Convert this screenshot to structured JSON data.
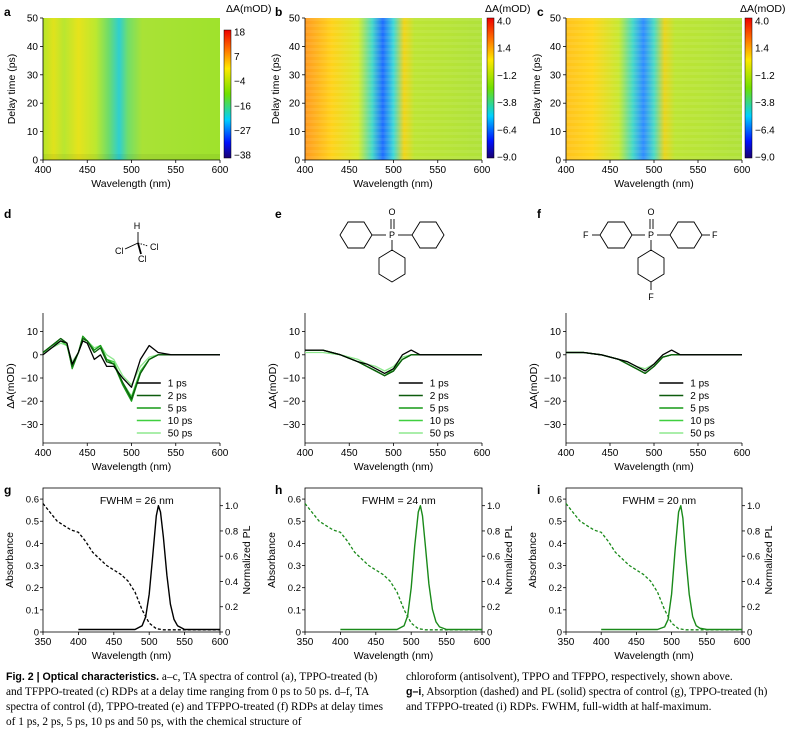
{
  "panel_letters": [
    "a",
    "b",
    "c",
    "d",
    "e",
    "f",
    "g",
    "h",
    "i"
  ],
  "colors": {
    "control": "#000000",
    "tppo": "#1a8a1a",
    "tfppo": "#1a8a1a",
    "d_series": [
      "#000000",
      "#0d5c0d",
      "#169a16",
      "#3fcf3f",
      "#8ee88e"
    ]
  },
  "common": {
    "wavelength_label": "Wavelength (nm)",
    "delay_label": "Delay time (ps)",
    "delta_a_label": "ΔA(mOD)",
    "absorbance_label": "Absorbance",
    "pl_label": "Normalized PL"
  },
  "chart_data": [
    {
      "id": "a",
      "type": "heatmap",
      "xlabel": "Wavelength (nm)",
      "ylabel": "Delay time (ps)",
      "xlim": [
        400,
        600
      ],
      "ylim": [
        0,
        50
      ],
      "xticks": [
        400,
        450,
        500,
        550,
        600
      ],
      "yticks": [
        0,
        10,
        20,
        30,
        40,
        50
      ],
      "colorbar": {
        "label": "ΔA(mOD)",
        "ticks": [
          "18",
          "7",
          "−4",
          "−16",
          "−27",
          "−38"
        ],
        "range": [
          -38,
          18
        ]
      }
    },
    {
      "id": "b",
      "type": "heatmap",
      "xlabel": "Wavelength (nm)",
      "ylabel": "Delay time (ps)",
      "xlim": [
        400,
        600
      ],
      "ylim": [
        0,
        50
      ],
      "xticks": [
        400,
        450,
        500,
        550,
        600
      ],
      "yticks": [
        0,
        10,
        20,
        30,
        40,
        50
      ],
      "colorbar": {
        "label": "ΔA(mOD)",
        "ticks": [
          "4.0",
          "1.4",
          "−1.2",
          "−3.8",
          "−6.4",
          "−9.0"
        ],
        "range": [
          -9,
          4
        ]
      }
    },
    {
      "id": "c",
      "type": "heatmap",
      "xlabel": "Wavelength (nm)",
      "ylabel": "Delay time (ps)",
      "xlim": [
        400,
        600
      ],
      "ylim": [
        0,
        50
      ],
      "xticks": [
        400,
        450,
        500,
        550,
        600
      ],
      "yticks": [
        0,
        10,
        20,
        30,
        40,
        50
      ],
      "colorbar": {
        "label": "ΔA(mOD)",
        "ticks": [
          "4.0",
          "1.4",
          "−1.2",
          "−3.8",
          "−6.4",
          "−9.0"
        ],
        "range": [
          -9,
          4
        ]
      }
    },
    {
      "id": "d",
      "type": "line",
      "xlabel": "Wavelength (nm)",
      "ylabel": "ΔA(mOD)",
      "xlim": [
        400,
        600
      ],
      "ylim": [
        -38,
        18
      ],
      "xticks": [
        400,
        450,
        500,
        550,
        600
      ],
      "yticks": [
        10,
        0,
        -10,
        -20,
        -30
      ],
      "series": [
        {
          "name": "1 ps",
          "x": [
            400,
            410,
            420,
            427,
            433,
            440,
            445,
            450,
            458,
            465,
            472,
            480,
            490,
            500,
            510,
            520,
            530,
            545,
            560,
            600
          ],
          "y": [
            0,
            3,
            6,
            5,
            -4,
            1,
            6,
            5,
            -2,
            0,
            -5,
            -5,
            -10,
            -14,
            -2,
            4,
            1,
            0,
            0,
            0
          ]
        },
        {
          "name": "2 ps",
          "x": [
            400,
            410,
            420,
            427,
            433,
            440,
            445,
            450,
            458,
            465,
            472,
            480,
            490,
            500,
            510,
            520,
            530,
            545,
            560,
            600
          ],
          "y": [
            1,
            4,
            7,
            5,
            -5,
            1,
            7,
            6,
            1,
            3,
            -3,
            -4,
            -12,
            -19,
            -8,
            -2,
            0,
            0,
            0,
            0
          ]
        },
        {
          "name": "5 ps",
          "x": [
            400,
            410,
            420,
            427,
            433,
            440,
            445,
            450,
            458,
            465,
            472,
            480,
            490,
            500,
            510,
            520,
            530,
            545,
            560,
            600
          ],
          "y": [
            1,
            4,
            7,
            5,
            -6,
            1,
            8,
            6,
            2,
            4,
            -2,
            -4,
            -13,
            -20,
            -8,
            -2,
            0,
            0,
            0,
            0
          ]
        },
        {
          "name": "10 ps",
          "x": [
            400,
            410,
            420,
            427,
            433,
            440,
            445,
            450,
            458,
            465,
            472,
            480,
            490,
            500,
            510,
            520,
            530,
            545,
            560,
            600
          ],
          "y": [
            1,
            4,
            6,
            4,
            -5,
            1,
            7,
            6,
            2,
            4,
            -2,
            -3,
            -12,
            -18,
            -7,
            -2,
            0,
            0,
            0,
            0
          ]
        },
        {
          "name": "50 ps",
          "x": [
            400,
            410,
            420,
            427,
            433,
            440,
            445,
            450,
            458,
            465,
            472,
            480,
            490,
            500,
            510,
            520,
            530,
            545,
            560,
            600
          ],
          "y": [
            1,
            3,
            5,
            4,
            -3,
            1,
            6,
            6,
            3,
            4,
            0,
            -2,
            -9,
            -13,
            -5,
            -1,
            0,
            0,
            0,
            0
          ]
        }
      ]
    },
    {
      "id": "e",
      "type": "line",
      "xlabel": "Wavelength (nm)",
      "ylabel": "ΔA(mOD)",
      "xlim": [
        400,
        600
      ],
      "ylim": [
        -38,
        18
      ],
      "xticks": [
        400,
        450,
        500,
        550,
        600
      ],
      "yticks": [
        10,
        0,
        -10,
        -20,
        -30
      ],
      "series": [
        {
          "name": "1 ps",
          "x": [
            400,
            420,
            440,
            460,
            470,
            480,
            490,
            500,
            510,
            520,
            530,
            545,
            560,
            600
          ],
          "y": [
            2,
            2,
            0,
            -3,
            -4,
            -6,
            -8,
            -6,
            0,
            2,
            0,
            0,
            0,
            0
          ]
        },
        {
          "name": "2 ps",
          "x": [
            400,
            420,
            440,
            460,
            470,
            480,
            490,
            500,
            510,
            520,
            530,
            545,
            560,
            600
          ],
          "y": [
            2,
            2,
            0,
            -3,
            -5,
            -7,
            -9,
            -7,
            -2,
            0,
            0,
            0,
            0,
            0
          ]
        },
        {
          "name": "5 ps",
          "x": [
            400,
            420,
            440,
            460,
            470,
            480,
            490,
            500,
            510,
            520,
            530,
            545,
            560,
            600
          ],
          "y": [
            2,
            2,
            0,
            -3,
            -5,
            -7,
            -9,
            -7,
            -2,
            0,
            0,
            0,
            0,
            0
          ]
        },
        {
          "name": "10 ps",
          "x": [
            400,
            420,
            440,
            460,
            470,
            480,
            490,
            500,
            510,
            520,
            530,
            545,
            560,
            600
          ],
          "y": [
            2,
            2,
            0,
            -3,
            -5,
            -7,
            -9,
            -6,
            -2,
            0,
            0,
            0,
            0,
            0
          ]
        },
        {
          "name": "50 ps",
          "x": [
            400,
            420,
            440,
            460,
            470,
            480,
            490,
            500,
            510,
            520,
            530,
            545,
            560,
            600
          ],
          "y": [
            1,
            1,
            0,
            -2,
            -4,
            -5,
            -7,
            -5,
            -1,
            0,
            0,
            0,
            0,
            0
          ]
        }
      ]
    },
    {
      "id": "f",
      "type": "line",
      "xlabel": "Wavelength (nm)",
      "ylabel": "ΔA(mOD)",
      "xlim": [
        400,
        600
      ],
      "ylim": [
        -38,
        18
      ],
      "xticks": [
        400,
        450,
        500,
        550,
        600
      ],
      "yticks": [
        10,
        0,
        -10,
        -20,
        -30
      ],
      "series": [
        {
          "name": "1 ps",
          "x": [
            400,
            420,
            440,
            460,
            470,
            480,
            490,
            500,
            510,
            520,
            530,
            545,
            560,
            600
          ],
          "y": [
            1,
            1,
            0,
            -2,
            -3,
            -5,
            -7,
            -4,
            0,
            2,
            0,
            0,
            0,
            0
          ]
        },
        {
          "name": "2 ps",
          "x": [
            400,
            420,
            440,
            460,
            470,
            480,
            490,
            500,
            510,
            520,
            530,
            545,
            560,
            600
          ],
          "y": [
            1,
            1,
            0,
            -2,
            -4,
            -6,
            -8,
            -5,
            -1,
            0,
            0,
            0,
            0,
            0
          ]
        },
        {
          "name": "5 ps",
          "x": [
            400,
            420,
            440,
            460,
            470,
            480,
            490,
            500,
            510,
            520,
            530,
            545,
            560,
            600
          ],
          "y": [
            1,
            1,
            0,
            -2,
            -4,
            -6,
            -8,
            -5,
            -1,
            0,
            0,
            0,
            0,
            0
          ]
        },
        {
          "name": "10 ps",
          "x": [
            400,
            420,
            440,
            460,
            470,
            480,
            490,
            500,
            510,
            520,
            530,
            545,
            560,
            600
          ],
          "y": [
            1,
            1,
            0,
            -2,
            -4,
            -6,
            -8,
            -5,
            -1,
            0,
            0,
            0,
            0,
            0
          ]
        },
        {
          "name": "50 ps",
          "x": [
            400,
            420,
            440,
            460,
            470,
            480,
            490,
            500,
            510,
            520,
            530,
            545,
            560,
            600
          ],
          "y": [
            1,
            1,
            0,
            -2,
            -3,
            -5,
            -6,
            -4,
            -1,
            0,
            0,
            0,
            0,
            0
          ]
        }
      ]
    },
    {
      "id": "g",
      "type": "line",
      "xlabel": "Wavelength (nm)",
      "ylabel": "Absorbance",
      "y2label": "Normalized PL",
      "xlim": [
        350,
        600
      ],
      "ylim": [
        0,
        0.65
      ],
      "y2lim": [
        0,
        1.14
      ],
      "xticks": [
        350,
        400,
        450,
        500,
        550,
        600
      ],
      "yticks": [
        0,
        0.1,
        0.2,
        0.3,
        0.4,
        0.5,
        0.6
      ],
      "y2ticks": [
        0,
        0.2,
        0.4,
        0.6,
        0.8,
        1.0
      ],
      "annotation": "FWHM = 26 nm",
      "absorbance": {
        "x": [
          350,
          360,
          370,
          380,
          390,
          400,
          410,
          420,
          430,
          440,
          450,
          460,
          470,
          480,
          490,
          500,
          510,
          520,
          530,
          600
        ],
        "y": [
          0.58,
          0.54,
          0.5,
          0.48,
          0.46,
          0.45,
          0.41,
          0.36,
          0.33,
          0.3,
          0.28,
          0.26,
          0.23,
          0.18,
          0.1,
          0.04,
          0.015,
          0.01,
          0.01,
          0.01
        ]
      },
      "pl": {
        "x": [
          400,
          480,
          490,
          495,
          500,
          505,
          510,
          513,
          516,
          520,
          525,
          530,
          535,
          540,
          550,
          600
        ],
        "y": [
          0.02,
          0.02,
          0.05,
          0.12,
          0.3,
          0.6,
          0.92,
          1.0,
          0.95,
          0.75,
          0.45,
          0.22,
          0.1,
          0.05,
          0.02,
          0.02
        ]
      }
    },
    {
      "id": "h",
      "type": "line",
      "xlabel": "Wavelength (nm)",
      "ylabel": "Absorbance",
      "y2label": "Normalized PL",
      "xlim": [
        350,
        600
      ],
      "ylim": [
        0,
        0.65
      ],
      "y2lim": [
        0,
        1.14
      ],
      "xticks": [
        350,
        400,
        450,
        500,
        550,
        600
      ],
      "yticks": [
        0,
        0.1,
        0.2,
        0.3,
        0.4,
        0.5,
        0.6
      ],
      "y2ticks": [
        0,
        0.2,
        0.4,
        0.6,
        0.8,
        1.0
      ],
      "annotation": "FWHM = 24 nm",
      "absorbance": {
        "x": [
          350,
          360,
          370,
          380,
          390,
          400,
          410,
          420,
          430,
          440,
          450,
          460,
          470,
          480,
          490,
          500,
          510,
          520,
          530,
          600
        ],
        "y": [
          0.58,
          0.54,
          0.5,
          0.48,
          0.46,
          0.45,
          0.41,
          0.36,
          0.33,
          0.3,
          0.28,
          0.26,
          0.23,
          0.18,
          0.1,
          0.04,
          0.015,
          0.01,
          0.01,
          0.01
        ]
      },
      "pl": {
        "x": [
          400,
          480,
          490,
          495,
          500,
          505,
          510,
          513,
          516,
          520,
          525,
          530,
          535,
          540,
          550,
          600
        ],
        "y": [
          0.02,
          0.02,
          0.05,
          0.13,
          0.35,
          0.68,
          0.95,
          1.0,
          0.92,
          0.68,
          0.38,
          0.18,
          0.08,
          0.04,
          0.02,
          0.02
        ]
      }
    },
    {
      "id": "i",
      "type": "line",
      "xlabel": "Wavelength (nm)",
      "ylabel": "Absorbance",
      "y2label": "Normalized PL",
      "xlim": [
        350,
        600
      ],
      "ylim": [
        0,
        0.65
      ],
      "y2lim": [
        0,
        1.14
      ],
      "xticks": [
        350,
        400,
        450,
        500,
        550,
        600
      ],
      "yticks": [
        0,
        0.1,
        0.2,
        0.3,
        0.4,
        0.5,
        0.6
      ],
      "y2ticks": [
        0,
        0.2,
        0.4,
        0.6,
        0.8,
        1.0
      ],
      "annotation": "FWHM = 20 nm",
      "absorbance": {
        "x": [
          350,
          360,
          370,
          380,
          390,
          400,
          410,
          420,
          430,
          440,
          450,
          460,
          470,
          480,
          490,
          500,
          510,
          520,
          530,
          600
        ],
        "y": [
          0.58,
          0.54,
          0.5,
          0.48,
          0.46,
          0.45,
          0.41,
          0.36,
          0.33,
          0.3,
          0.28,
          0.26,
          0.23,
          0.18,
          0.1,
          0.04,
          0.015,
          0.01,
          0.01,
          0.01
        ]
      },
      "pl": {
        "x": [
          400,
          480,
          490,
          495,
          500,
          505,
          510,
          513,
          516,
          520,
          525,
          530,
          535,
          540,
          550,
          600
        ],
        "y": [
          0.02,
          0.02,
          0.04,
          0.1,
          0.3,
          0.65,
          0.95,
          1.0,
          0.9,
          0.6,
          0.3,
          0.12,
          0.05,
          0.03,
          0.02,
          0.02
        ]
      }
    }
  ],
  "structures": {
    "d": {
      "atoms": [
        "H",
        "Cl",
        "Cl",
        "Cl"
      ]
    },
    "e": {
      "atoms": [
        "O",
        "P"
      ]
    },
    "f": {
      "atoms": [
        "O",
        "P",
        "F",
        "F",
        "F"
      ]
    }
  },
  "caption": {
    "left_bold": "Fig. 2 | Optical characteristics.",
    "left_text": " a–c, TA spectra of control (a), TPPO-treated (b) and TFPPO-treated (c) RDPs at a delay time ranging from 0 ps to 50 ps. d–f, TA spectra of control (d), TPPO-treated (e) and TFPPO-treated (f) RDPs at delay times of 1 ps, 2 ps, 5 ps, 10 ps and 50 ps, with the chemical structure of",
    "right_text_1": "chloroform (antisolvent), TPPO and TFPPO, respectively, shown above.",
    "right_bold": "g–i",
    "right_text_2": ", Absorption (dashed) and PL (solid) spectra of control (g), TPPO-treated (h) and TFPPO-treated (i) RDPs. FWHM, full-width at half-maximum."
  }
}
